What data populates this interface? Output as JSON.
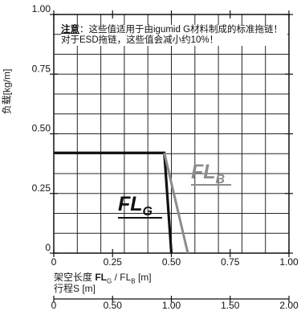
{
  "chart_data": {
    "type": "line",
    "ylabel": "负载[kg/m]",
    "xlabel": {
      "prefix": "架空长度 ",
      "fl_g_main": "FL",
      "fl_g_sub": "G",
      "sep": " / FL",
      "fl_b_sub": "B",
      "unit": " [m]"
    },
    "x2label": "行程S [m]",
    "xlim": [
      0,
      1.0
    ],
    "ylim": [
      0,
      1.0
    ],
    "xticks": [
      "0",
      "0.25",
      "0.50",
      "0.75",
      "1.00"
    ],
    "yticks": [
      "0",
      "0.25",
      "0.50",
      "0.75",
      "1.00"
    ],
    "x2ticks": [
      "0",
      "0.50",
      "1.00",
      "1.50",
      "2.00"
    ],
    "grid": true,
    "series": [
      {
        "name": "FL_G",
        "label_main": "FL",
        "label_sub": "G",
        "color": "#111111",
        "x": [
          0,
          0.47,
          0.5
        ],
        "y": [
          0.42,
          0.42,
          0
        ]
      },
      {
        "name": "FL_B",
        "label_main": "FL",
        "label_sub": "B",
        "color": "#8c8c8c",
        "x": [
          0.47,
          0.57
        ],
        "y": [
          0.42,
          0
        ]
      }
    ]
  },
  "note": {
    "heading": "注意",
    "text": "：这些值适用于由igumid G材料制成的标准拖链！对于ESD拖链，这些值会减小约10%！"
  }
}
